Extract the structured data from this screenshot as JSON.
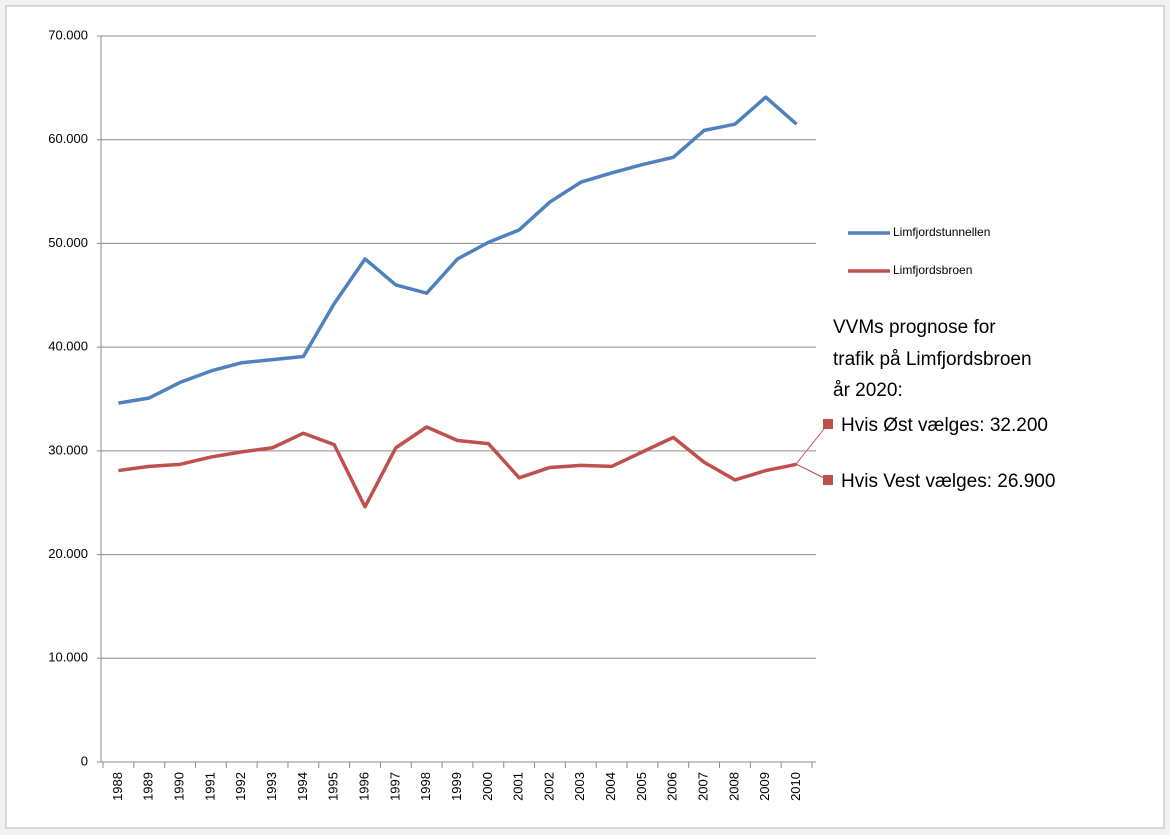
{
  "chart_data": {
    "type": "line",
    "categories": [
      "1988",
      "1989",
      "1990",
      "1991",
      "1992",
      "1993",
      "1994",
      "1995",
      "1996",
      "1997",
      "1998",
      "1999",
      "2000",
      "2001",
      "2002",
      "2003",
      "2004",
      "2005",
      "2006",
      "2007",
      "2008",
      "2009",
      "2010"
    ],
    "series": [
      {
        "name": "Limfjordstunnellen",
        "color": "#4f81bd",
        "values": [
          34600,
          35100,
          36600,
          37700,
          38500,
          38800,
          39100,
          44200,
          48500,
          46000,
          45200,
          48500,
          50100,
          51300,
          54000,
          55900,
          56800,
          57600,
          58300,
          60900,
          61500,
          64100,
          61500
        ]
      },
      {
        "name": "Limfjordsbroen",
        "color": "#c0504d",
        "values": [
          28100,
          28500,
          28700,
          29400,
          29900,
          30300,
          31700,
          30600,
          24600,
          30300,
          32300,
          31000,
          30700,
          27400,
          28400,
          28600,
          28500,
          29900,
          31300,
          28900,
          27200,
          28100,
          28700
        ]
      }
    ],
    "ylim": [
      0,
      70000
    ],
    "yticks": [
      0,
      {
        "value": 10000,
        "label": "10.000"
      },
      {
        "value": 20000,
        "label": "20.000"
      },
      {
        "value": 30000,
        "label": "30.000"
      },
      {
        "value": 40000,
        "label": "40.000"
      },
      {
        "value": 50000,
        "label": "50.000"
      },
      {
        "value": 60000,
        "label": "60.000"
      },
      {
        "value": 70000,
        "label": "70.000"
      }
    ],
    "grid": true,
    "legend": "right",
    "annotation": [
      "VVMs prognose for",
      "trafik på Limfjordsbroen",
      "år 2020:",
      "Hvis Øst vælges: 32.200",
      "Hvis Vest vælges: 26.900"
    ]
  }
}
